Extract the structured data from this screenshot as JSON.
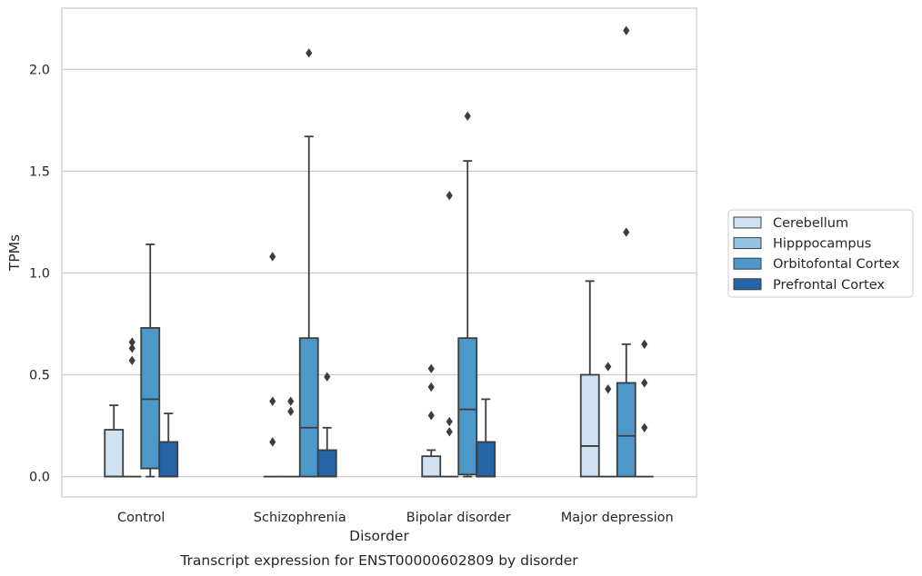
{
  "chart_data": {
    "type": "box",
    "title": "Transcript expression for ENST00000602809 by disorder",
    "xlabel": "Disorder",
    "ylabel": "TPMs",
    "categories": [
      "Control",
      "Schizophrenia",
      "Bipolar disorder",
      "Major depression"
    ],
    "ylim": [
      -0.1,
      2.3
    ],
    "yticks": [
      "0.0",
      "0.5",
      "1.0",
      "1.5",
      "2.0"
    ],
    "grid": true,
    "legend_position": "right",
    "series": [
      {
        "name": "Cerebellum",
        "color": "#d0e1f2",
        "boxes": [
          {
            "q1": 0,
            "median": 0,
            "q3": 0.23,
            "whislo": 0,
            "whishi": 0.35,
            "fliers": []
          },
          {
            "q1": 0,
            "median": 0,
            "q3": 0,
            "whislo": 0,
            "whishi": 0,
            "fliers": [
              0.17,
              0.37,
              1.08
            ]
          },
          {
            "q1": 0,
            "median": 0,
            "q3": 0.1,
            "whislo": 0,
            "whishi": 0.13,
            "fliers": [
              0.3,
              0.44,
              0.53
            ]
          },
          {
            "q1": 0,
            "median": 0.15,
            "q3": 0.5,
            "whislo": 0,
            "whishi": 0.96,
            "fliers": []
          }
        ]
      },
      {
        "name": "Hipppocampus",
        "color": "#94c4df",
        "boxes": [
          {
            "q1": 0,
            "median": 0,
            "q3": 0,
            "whislo": 0,
            "whishi": 0,
            "fliers": [
              0.57,
              0.63,
              0.66
            ]
          },
          {
            "q1": 0,
            "median": 0,
            "q3": 0,
            "whislo": 0,
            "whishi": 0,
            "fliers": [
              0.32,
              0.37
            ]
          },
          {
            "q1": 0,
            "median": 0,
            "q3": 0,
            "whislo": 0,
            "whishi": 0,
            "fliers": [
              0.22,
              0.27,
              1.38
            ]
          },
          {
            "q1": 0,
            "median": 0,
            "q3": 0,
            "whislo": 0,
            "whishi": 0,
            "fliers": [
              0.43,
              0.54
            ]
          }
        ]
      },
      {
        "name": "Orbitofontal Cortex",
        "color": "#4b98c9",
        "boxes": [
          {
            "q1": 0.04,
            "median": 0.38,
            "q3": 0.73,
            "whislo": 0,
            "whishi": 1.14,
            "fliers": []
          },
          {
            "q1": 0,
            "median": 0.24,
            "q3": 0.68,
            "whislo": 0,
            "whishi": 1.67,
            "fliers": [
              2.08
            ]
          },
          {
            "q1": 0.01,
            "median": 0.33,
            "q3": 0.68,
            "whislo": 0,
            "whishi": 1.55,
            "fliers": [
              1.77
            ]
          },
          {
            "q1": 0,
            "median": 0.2,
            "q3": 0.46,
            "whislo": 0,
            "whishi": 0.65,
            "fliers": [
              1.2,
              2.19
            ]
          }
        ]
      },
      {
        "name": "Prefrontal Cortex",
        "color": "#2464a7",
        "boxes": [
          {
            "q1": 0,
            "median": 0,
            "q3": 0.17,
            "whislo": 0,
            "whishi": 0.31,
            "fliers": []
          },
          {
            "q1": 0,
            "median": 0,
            "q3": 0.13,
            "whislo": 0,
            "whishi": 0.24,
            "fliers": [
              0.49
            ]
          },
          {
            "q1": 0,
            "median": 0,
            "q3": 0.17,
            "whislo": 0,
            "whishi": 0.38,
            "fliers": []
          },
          {
            "q1": 0,
            "median": 0,
            "q3": 0,
            "whislo": 0,
            "whishi": 0,
            "fliers": [
              0.24,
              0.46,
              0.65
            ]
          }
        ]
      }
    ]
  }
}
